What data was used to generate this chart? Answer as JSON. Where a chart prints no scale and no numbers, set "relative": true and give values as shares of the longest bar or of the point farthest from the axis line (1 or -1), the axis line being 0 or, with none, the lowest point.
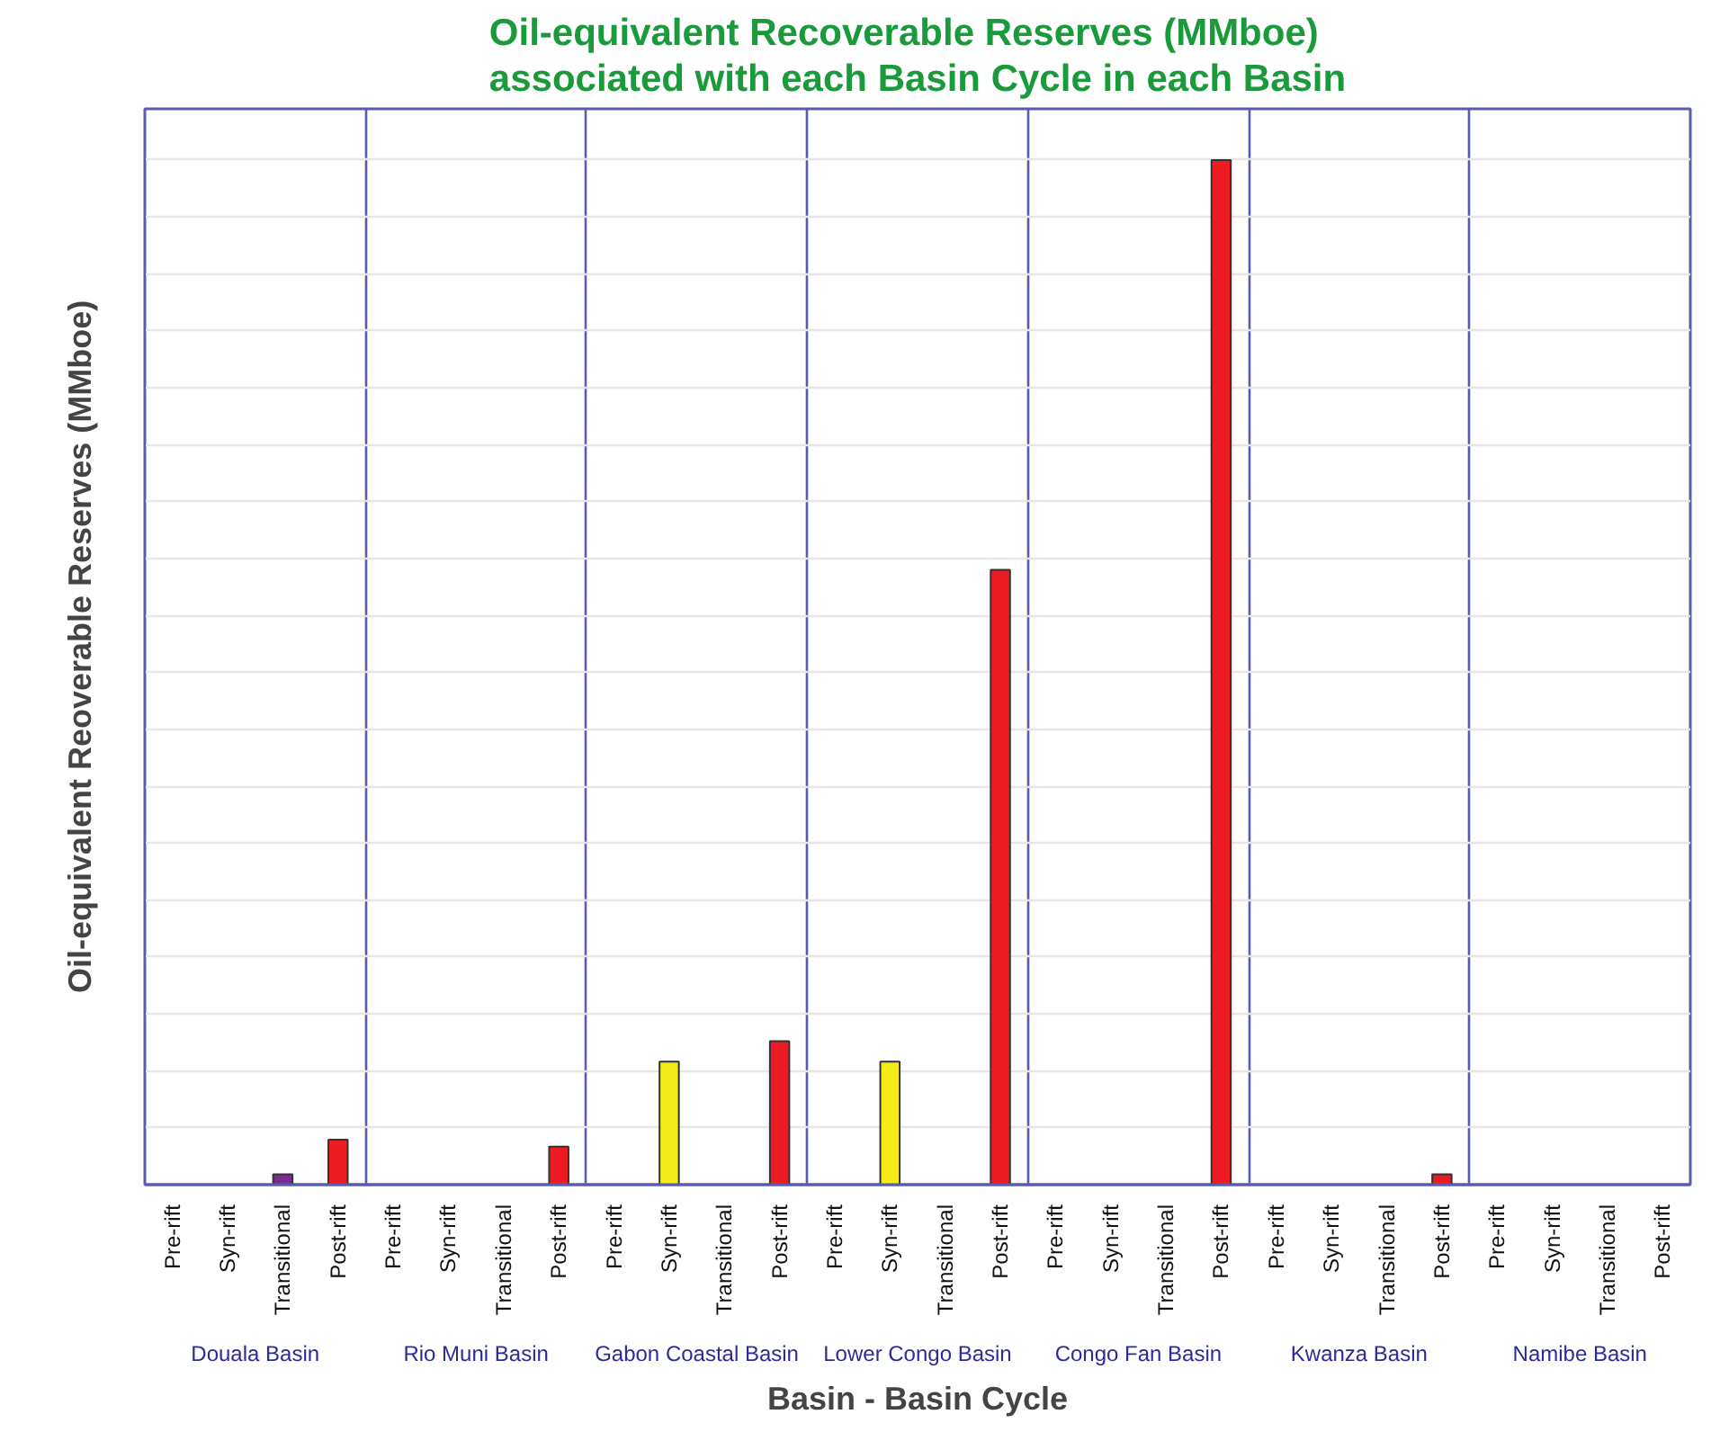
{
  "chart_data": {
    "type": "bar",
    "title": "Oil-equivalent Recoverable Reserves (MMboe)\nassociated with each Basin Cycle in each Basin",
    "xlabel": "Basin - Basin Cycle",
    "ylabel": "Oil-equivalent Reoverable Reserves (MMboe)",
    "relative": true,
    "grid": "y",
    "categories": [
      "Pre-rift",
      "Syn-rift",
      "Transitional",
      "Post-rift",
      "Pre-rift",
      "Syn-rift",
      "Transitional",
      "Post-rift",
      "Pre-rift",
      "Syn-rift",
      "Transitional",
      "Post-rift",
      "Pre-rift",
      "Syn-rift",
      "Transitional",
      "Post-rift",
      "Pre-rift",
      "Syn-rift",
      "Transitional",
      "Post-rift",
      "Pre-rift",
      "Syn-rift",
      "Transitional",
      "Post-rift",
      "Pre-rift",
      "Syn-rift",
      "Transitional",
      "Post-rift"
    ],
    "values": [
      null,
      null,
      0.01,
      0.044,
      null,
      null,
      null,
      0.037,
      null,
      0.12,
      null,
      0.14,
      null,
      0.12,
      null,
      0.6,
      null,
      null,
      null,
      1,
      null,
      null,
      null,
      0.01,
      null,
      null,
      null,
      null
    ],
    "colors": [
      "#ed1c24",
      "#f5eb1a",
      "#7b2a8e",
      "#ed1c24",
      "#ed1c24",
      "#f5eb1a",
      "#7b2a8e",
      "#ed1c24",
      "#ed1c24",
      "#f5eb1a",
      "#7b2a8e",
      "#ed1c24",
      "#ed1c24",
      "#f5eb1a",
      "#7b2a8e",
      "#ed1c24",
      "#ed1c24",
      "#f5eb1a",
      "#7b2a8e",
      "#ed1c24",
      "#ed1c24",
      "#f5eb1a",
      "#7b2a8e",
      "#ed1c24",
      "#ed1c24",
      "#f5eb1a",
      "#7b2a8e",
      "#ed1c24"
    ],
    "annotations": [
      "Douala Basin",
      "Rio Muni Basin",
      "Gabon Coastal Basin",
      "Lower Congo Basin",
      "Congo Fan Basin",
      "Kwanza Basin",
      "Namibe Basin"
    ]
  }
}
